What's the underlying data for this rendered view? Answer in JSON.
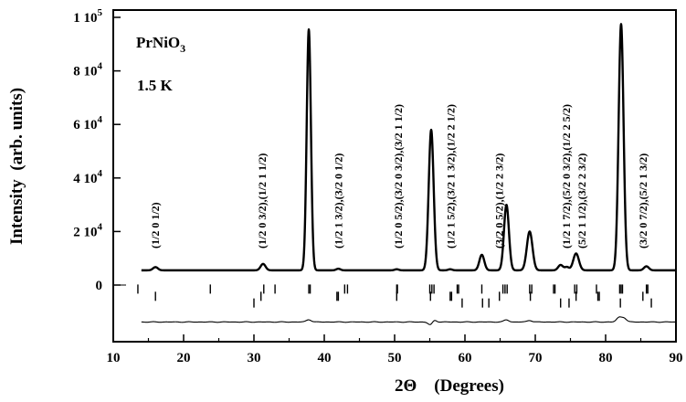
{
  "chart_data": {
    "type": "line",
    "title": "",
    "xlabel": "2Θ    (Degrees)",
    "ylabel": "Intensity  (arb. units)",
    "xlim": [
      10,
      90
    ],
    "ylim": [
      -22000,
      100000
    ],
    "grid": false,
    "legend": "none",
    "x_tick_labels": [
      "10",
      "20",
      "30",
      "40",
      "50",
      "60",
      "70",
      "80",
      "90"
    ],
    "y_ticks": [
      {
        "mantissa": "1 10",
        "exp": "5",
        "value": 100000
      },
      {
        "mantissa": "8 10",
        "exp": "4",
        "value": 80000
      },
      {
        "mantissa": "6 10",
        "exp": "4",
        "value": 60000
      },
      {
        "mantissa": "4 10",
        "exp": "4",
        "value": 40000
      },
      {
        "mantissa": "2 10",
        "exp": "4",
        "value": 20000
      },
      {
        "mantissa": "0",
        "exp": "",
        "value": 0
      }
    ],
    "inset_text": {
      "compound_base": "PrNiO",
      "compound_sub": "3",
      "temperature": "1.5  K"
    },
    "baseline": 5500,
    "peaks": [
      {
        "x": 16.0,
        "height": 1200,
        "width": 0.35
      },
      {
        "x": 31.3,
        "height": 2400,
        "width": 0.35
      },
      {
        "x": 37.8,
        "height": 90000,
        "width": 0.3
      },
      {
        "x": 42.0,
        "height": 600,
        "width": 0.3
      },
      {
        "x": 50.3,
        "height": 400,
        "width": 0.3
      },
      {
        "x": 55.2,
        "height": 52500,
        "width": 0.35
      },
      {
        "x": 57.9,
        "height": 400,
        "width": 0.3
      },
      {
        "x": 62.4,
        "height": 5800,
        "width": 0.35
      },
      {
        "x": 65.9,
        "height": 24500,
        "width": 0.35
      },
      {
        "x": 69.2,
        "height": 14500,
        "width": 0.4
      },
      {
        "x": 73.6,
        "height": 2000,
        "width": 0.35
      },
      {
        "x": 74.5,
        "height": 1200,
        "width": 0.3
      },
      {
        "x": 75.8,
        "height": 6300,
        "width": 0.4
      },
      {
        "x": 82.2,
        "height": 92000,
        "width": 0.35
      },
      {
        "x": 85.8,
        "height": 1500,
        "width": 0.35
      }
    ],
    "data_x_range": [
      14,
      90
    ],
    "tick_row_nuclear": {
      "y": -1500,
      "positions": [
        13.5,
        23.8,
        31.4,
        33.0,
        37.8,
        38.0,
        42.9,
        43.3,
        50.3,
        50.4,
        55.0,
        55.3,
        55.6,
        58.9,
        59.1,
        62.4,
        65.4,
        65.7,
        66.0,
        69.2,
        69.5,
        72.6,
        72.8,
        75.6,
        75.9,
        78.7,
        82.0,
        82.2,
        82.4,
        85.8,
        86.0
      ]
    },
    "tick_row_magnetic1": {
      "y": -4200,
      "positions": [
        16.0,
        31.0,
        41.8,
        42.0,
        50.3,
        55.1,
        57.9,
        58.1,
        64.9,
        69.3,
        75.8,
        78.9,
        79.1,
        85.3
      ]
    },
    "tick_row_magnetic2": {
      "y": -6700,
      "positions": [
        30.0,
        59.6,
        62.5,
        63.4,
        73.6,
        74.8,
        82.1,
        86.5
      ]
    },
    "difference": {
      "offset": -13800,
      "features": [
        {
          "x": 37.8,
          "amp": 900
        },
        {
          "x": 55.2,
          "amp": -1800
        },
        {
          "x": 55.5,
          "amp": 1400
        },
        {
          "x": 65.9,
          "amp": 800
        },
        {
          "x": 69.2,
          "amp": 600
        },
        {
          "x": 81.9,
          "amp": 1600
        },
        {
          "x": 82.6,
          "amp": 1500
        }
      ]
    },
    "annotations": [
      {
        "text": "(1/2   0   1/2)",
        "x": 16.0
      },
      {
        "text": "(1/2   0   3/2),(1/2   1   1/2)",
        "x": 31.2
      },
      {
        "text": "(1/2   1   3/2),(3/2   0   1/2)",
        "x": 42.0
      },
      {
        "text": "(1/2   0   5/2),(3/2   0   3/2),(3/2   1   1/2)",
        "x": 50.5
      },
      {
        "text": "(1/2   1   5/2),(3/2   1   3/2),(1/2   2   1/2)",
        "x": 58.0
      },
      {
        "text": "(3/2   0   5/2),(1/2   2   3/2)",
        "x": 64.9
      },
      {
        "text": "(1/2   1   7/2),(5/2   0   3/2),(1/2   2   5/2)",
        "x": 74.4
      },
      {
        "text": "(5/2   1   1/2),(3/2   2   3/2)",
        "x": 76.6
      },
      {
        "text": "(3/2   0   7/2),(5/2   1   3/2)",
        "x": 85.3
      }
    ]
  }
}
